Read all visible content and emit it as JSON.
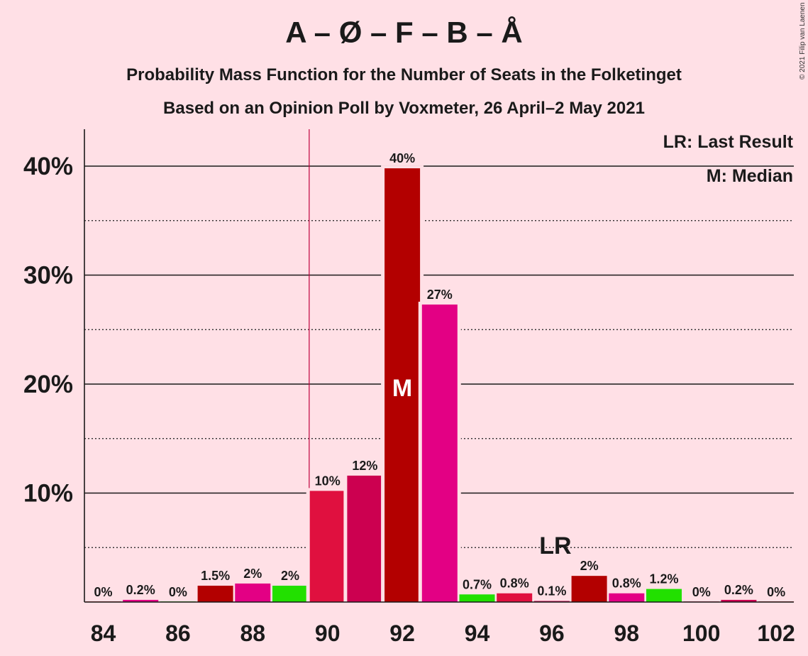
{
  "chart_data": {
    "type": "bar",
    "title": "A – Ø – F – B – Å",
    "subtitle": "Probability Mass Function for the Number of Seats in the Folketinget",
    "subtitle2": "Based on an Opinion Poll by Voxmeter, 26 April–2 May 2021",
    "copyright": "© 2021 Filip van Laenen",
    "legend": {
      "lr": "LR: Last Result",
      "median": "M: Median"
    },
    "ylim": [
      0,
      43
    ],
    "yticks": [
      {
        "value": 10,
        "label": "10%"
      },
      {
        "value": 20,
        "label": "20%"
      },
      {
        "value": 30,
        "label": "30%"
      },
      {
        "value": 40,
        "label": "40%"
      }
    ],
    "yminor": [
      5,
      15,
      25,
      35
    ],
    "xticks": [
      "84",
      "86",
      "88",
      "90",
      "92",
      "94",
      "96",
      "98",
      "100",
      "102"
    ],
    "bars": [
      {
        "seats": 84,
        "value": 0,
        "label": "0%",
        "color": "#B30000"
      },
      {
        "seats": 85,
        "value": 0.2,
        "label": "0.2%",
        "color": "#E30084"
      },
      {
        "seats": 86,
        "value": 0,
        "label": "0%",
        "color": "#22E000"
      },
      {
        "seats": 87,
        "value": 1.5,
        "label": "1.5%",
        "color": "#B30000"
      },
      {
        "seats": 88,
        "value": 1.7,
        "label": "2%",
        "color": "#E30084"
      },
      {
        "seats": 89,
        "value": 1.5,
        "label": "2%",
        "color": "#22E000"
      },
      {
        "seats": 90,
        "value": 10.2,
        "label": "10%",
        "color": "#E0103F"
      },
      {
        "seats": 91,
        "value": 11.6,
        "label": "12%",
        "color": "#CC0050"
      },
      {
        "seats": 92,
        "value": 39.8,
        "label": "40%",
        "color": "#B30000"
      },
      {
        "seats": 93,
        "value": 27.3,
        "label": "27%",
        "color": "#E30084"
      },
      {
        "seats": 94,
        "value": 0.7,
        "label": "0.7%",
        "color": "#22E000"
      },
      {
        "seats": 95,
        "value": 0.8,
        "label": "0.8%",
        "color": "#E0103F"
      },
      {
        "seats": 96,
        "value": 0.1,
        "label": "0.1%",
        "color": "#CC0050"
      },
      {
        "seats": 97,
        "value": 2.4,
        "label": "2%",
        "color": "#B30000"
      },
      {
        "seats": 98,
        "value": 0.8,
        "label": "0.8%",
        "color": "#E30084"
      },
      {
        "seats": 99,
        "value": 1.2,
        "label": "1.2%",
        "color": "#22E000"
      },
      {
        "seats": 100,
        "value": 0,
        "label": "0%",
        "color": "#E0103F"
      },
      {
        "seats": 101,
        "value": 0.2,
        "label": "0.2%",
        "color": "#CC0050"
      },
      {
        "seats": 102,
        "value": 0,
        "label": "0%",
        "color": "#B30000"
      }
    ],
    "median": {
      "seats": 92,
      "label": "M"
    },
    "last_result": {
      "seats": 96,
      "label": "LR",
      "line_seats": 89.5
    },
    "colors": {
      "background": "#FFE0E6",
      "marker_line": "#C0003C"
    }
  }
}
